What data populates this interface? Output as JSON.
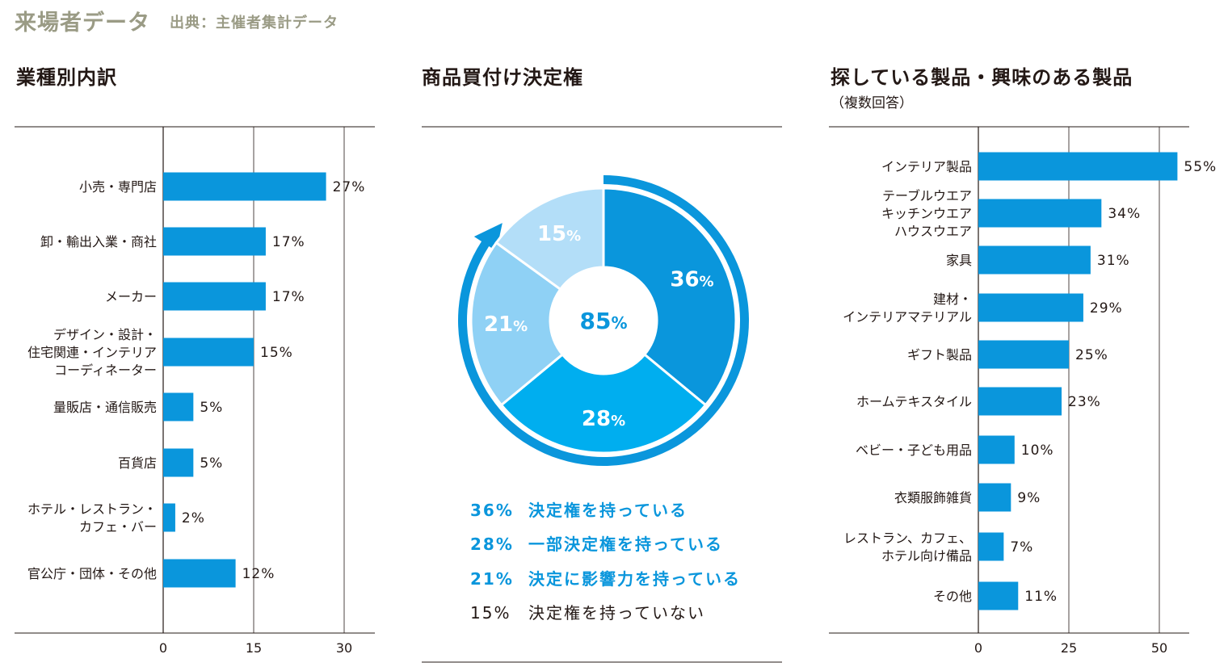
{
  "header": {
    "title": "来場者データ",
    "source": "出典：主催者集計データ"
  },
  "colors": {
    "bar": "#0a96dc",
    "highlight": "#0a96dc",
    "pie": [
      "#0a96dc",
      "#00aeef",
      "#8fd1f5",
      "#b3def8"
    ],
    "ring": "#0a96dc",
    "header": "#9a9b85"
  },
  "chart_data": [
    {
      "type": "bar",
      "orientation": "horizontal",
      "title": "業種別内訳",
      "categories": [
        "小売・専門店",
        "卸・輸出入業・商社",
        "メーカー",
        "デザイン・設計・\n住宅関連・インテリア\nコーディネーター",
        "量販店・通信販売",
        "百貨店",
        "ホテル・レストラン・\nカフェ・バー",
        "官公庁・団体・その他"
      ],
      "values": [
        27,
        17,
        17,
        15,
        5,
        5,
        2,
        12
      ],
      "value_labels": [
        "27%",
        "17%",
        "17%",
        "15%",
        "5%",
        "5%",
        "2%",
        "12%"
      ],
      "highlight_index": 0,
      "xlim": [
        0,
        30
      ],
      "xticks": [
        "0",
        "15",
        "30"
      ]
    },
    {
      "type": "pie",
      "title": "商品買付け決定権",
      "center_label": "85%",
      "slices": [
        {
          "label": "決定権を持っている",
          "value": 36,
          "value_label": "36%",
          "legend_pct": "36%"
        },
        {
          "label": "一部決定権を持っている",
          "value": 28,
          "value_label": "28%",
          "legend_pct": "28%"
        },
        {
          "label": "決定に影響力を持っている",
          "value": 21,
          "value_label": "21%",
          "legend_pct": "21%"
        },
        {
          "label": "決定権を持っていない",
          "value": 15,
          "value_label": "15%",
          "legend_pct": "15%"
        }
      ]
    },
    {
      "type": "bar",
      "orientation": "horizontal",
      "title": "探している製品・興味のある製品",
      "subtitle": "（複数回答）",
      "categories": [
        "インテリア製品",
        "テーブルウエア\nキッチンウエア\nハウスウエア",
        "家具",
        "建材・\nインテリアマテリアル",
        "ギフト製品",
        "ホームテキスタイル",
        "ベビー・子ども用品",
        "衣類服飾雑貨",
        "レストラン、カフェ、\nホテル向け備品",
        "その他"
      ],
      "values": [
        55,
        34,
        31,
        29,
        25,
        23,
        10,
        9,
        7,
        11
      ],
      "value_labels": [
        "55%",
        "34%",
        "31%",
        "29%",
        "25%",
        "23%",
        "10%",
        "9%",
        "7%",
        "11%"
      ],
      "xlim": [
        0,
        50
      ],
      "xticks": [
        "0",
        "25",
        "50"
      ]
    }
  ]
}
